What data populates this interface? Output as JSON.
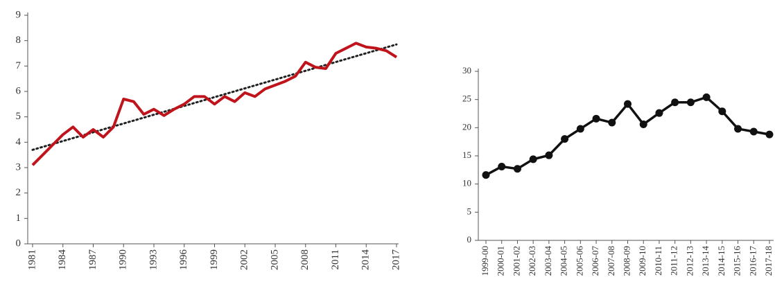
{
  "chart_data": [
    {
      "type": "line",
      "x": [
        1981,
        1982,
        1983,
        1984,
        1985,
        1986,
        1987,
        1988,
        1989,
        1990,
        1991,
        1992,
        1993,
        1994,
        1995,
        1996,
        1997,
        1998,
        1999,
        2000,
        2001,
        2002,
        2003,
        2004,
        2005,
        2006,
        2007,
        2008,
        2009,
        2010,
        2011,
        2012,
        2013,
        2014,
        2015,
        2016,
        2017
      ],
      "series": [
        {
          "color": "#c0141c",
          "values": [
            3.1,
            3.5,
            3.9,
            4.3,
            4.6,
            4.2,
            4.5,
            4.2,
            4.6,
            5.7,
            5.6,
            5.1,
            5.3,
            5.05,
            5.3,
            5.5,
            5.8,
            5.8,
            5.5,
            5.8,
            5.6,
            5.95,
            5.8,
            6.1,
            6.25,
            6.4,
            6.6,
            7.15,
            6.95,
            6.9,
            7.5,
            7.7,
            7.9,
            7.75,
            7.7,
            7.6,
            7.35
          ]
        }
      ],
      "trend": {
        "x": [
          1981,
          2017
        ],
        "values": [
          3.7,
          7.85
        ],
        "color": "#222222",
        "style": "dotted"
      },
      "xlim": [
        1981,
        2017
      ],
      "xticks": [
        1981,
        1984,
        1987,
        1990,
        1993,
        1996,
        1999,
        2002,
        2005,
        2008,
        2011,
        2014,
        2017
      ],
      "ylim": [
        0,
        9
      ],
      "yticks": [
        0,
        1,
        2,
        3,
        4,
        5,
        6,
        7,
        8,
        9
      ]
    },
    {
      "type": "line",
      "categories": [
        "1999-00",
        "2000-01",
        "2001-02",
        "2002-03",
        "2003-04",
        "2004-05",
        "2005-06",
        "2006-07",
        "2007-08",
        "2008-09",
        "2009-10",
        "2010-11",
        "2011-12",
        "2012-13",
        "2013-14",
        "2014-15",
        "2015-16",
        "2016-17",
        "2017-18"
      ],
      "series": [
        {
          "color": "#111111",
          "markers": true,
          "values": [
            11.6,
            13.1,
            12.7,
            14.4,
            15.1,
            18.0,
            19.8,
            21.6,
            20.9,
            24.2,
            20.6,
            22.6,
            24.5,
            24.5,
            25.4,
            22.9,
            19.8,
            19.3,
            18.8
          ]
        }
      ],
      "ylim": [
        0,
        30
      ],
      "yticks": [
        0,
        5,
        10,
        15,
        20,
        25,
        30
      ]
    }
  ]
}
